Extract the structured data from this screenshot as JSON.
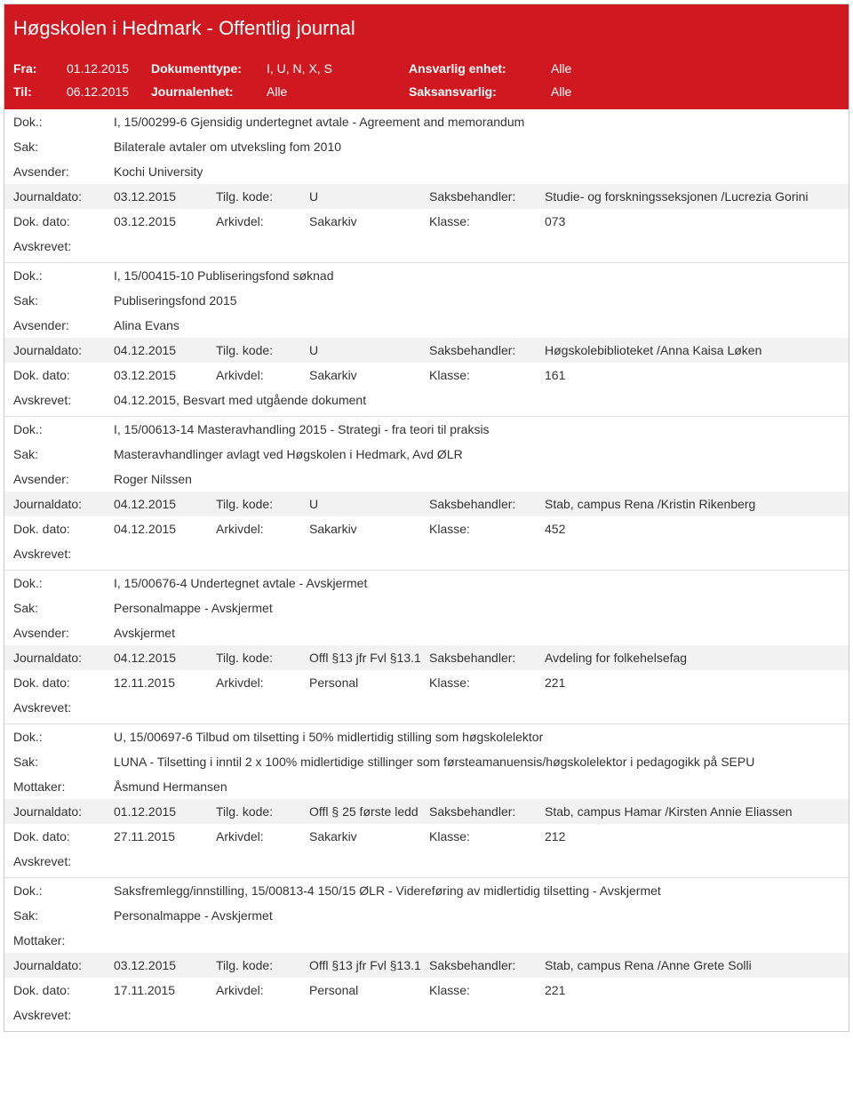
{
  "header": {
    "title": "Høgskolen i Hedmark - Offentlig journal"
  },
  "meta": {
    "fra_label": "Fra:",
    "fra_value": "01.12.2015",
    "til_label": "Til:",
    "til_value": "06.12.2015",
    "doktype_label": "Dokumenttype:",
    "doktype_value": "I, U, N, X, S",
    "journalenhet_label": "Journalenhet:",
    "journalenhet_value": "Alle",
    "ansvarlig_label": "Ansvarlig enhet:",
    "ansvarlig_value": "Alle",
    "saksansvarlig_label": "Saksansvarlig:",
    "saksansvarlig_value": "Alle"
  },
  "labels": {
    "dok": "Dok.:",
    "sak": "Sak:",
    "avsender": "Avsender:",
    "mottaker": "Mottaker:",
    "journaldato": "Journaldato:",
    "dokdato": "Dok. dato:",
    "tilgkode": "Tilg. kode:",
    "arkivdel": "Arkivdel:",
    "saksbehandler": "Saksbehandler:",
    "klasse": "Klasse:",
    "avskrevet": "Avskrevet:"
  },
  "entries": [
    {
      "dok": "I, 15/00299-6 Gjensidig undertegnet avtale - Agreement and memorandum",
      "sak": "Bilaterale avtaler om utveksling fom 2010",
      "party_label": "Avsender:",
      "party": "Kochi University",
      "journaldato": "03.12.2015",
      "tilgkode": "U",
      "saksbehandler": "Studie- og forskningsseksjonen /Lucrezia Gorini",
      "dokdato": "03.12.2015",
      "arkivdel": "Sakarkiv",
      "klasse": "073",
      "avskrevet": ""
    },
    {
      "dok": "I, 15/00415-10 Publiseringsfond søknad",
      "sak": "Publiseringsfond 2015",
      "party_label": "Avsender:",
      "party": "Alina Evans",
      "journaldato": "04.12.2015",
      "tilgkode": "U",
      "saksbehandler": "Høgskolebiblioteket /Anna Kaisa Løken",
      "dokdato": "03.12.2015",
      "arkivdel": "Sakarkiv",
      "klasse": "161",
      "avskrevet": "04.12.2015, Besvart med utgående dokument"
    },
    {
      "dok": "I, 15/00613-14 Masteravhandling 2015 - Strategi - fra teori til praksis",
      "sak": "Masteravhandlinger avlagt ved Høgskolen i Hedmark, Avd ØLR",
      "party_label": "Avsender:",
      "party": "Roger Nilssen",
      "journaldato": "04.12.2015",
      "tilgkode": "U",
      "saksbehandler": "Stab, campus Rena /Kristin Rikenberg",
      "dokdato": "04.12.2015",
      "arkivdel": "Sakarkiv",
      "klasse": "452",
      "avskrevet": ""
    },
    {
      "dok": "I, 15/00676-4 Undertegnet avtale - Avskjermet",
      "sak": "Personalmappe - Avskjermet",
      "party_label": "Avsender:",
      "party": "Avskjermet",
      "journaldato": "04.12.2015",
      "tilgkode": "Offl §13 jfr Fvl §13.1",
      "saksbehandler": "Avdeling for folkehelsefag",
      "dokdato": "12.11.2015",
      "arkivdel": "Personal",
      "klasse": "221",
      "avskrevet": ""
    },
    {
      "dok": "U, 15/00697-6 Tilbud om tilsetting i 50% midlertidig stilling som høgskolelektor",
      "sak": "LUNA - Tilsetting i inntil 2 x 100% midlertidige stillinger som førsteamanuensis/høgskolelektor i pedagogikk på SEPU",
      "party_label": "Mottaker:",
      "party": "Åsmund Hermansen",
      "journaldato": "01.12.2015",
      "tilgkode": "Offl § 25 første ledd",
      "saksbehandler": "Stab, campus Hamar /Kirsten Annie Eliassen",
      "dokdato": "27.11.2015",
      "arkivdel": "Sakarkiv",
      "klasse": "212",
      "avskrevet": ""
    },
    {
      "dok": "Saksfremlegg/innstilling, 15/00813-4 150/15 ØLR - Videreføring av midlertidig tilsetting - Avskjermet",
      "sak": "Personalmappe - Avskjermet",
      "party_label": "Mottaker:",
      "party": "",
      "journaldato": "03.12.2015",
      "tilgkode": "Offl §13 jfr Fvl §13.1",
      "saksbehandler": "Stab, campus Rena /Anne Grete Solli",
      "dokdato": "17.11.2015",
      "arkivdel": "Personal",
      "klasse": "221",
      "avskrevet": ""
    }
  ]
}
